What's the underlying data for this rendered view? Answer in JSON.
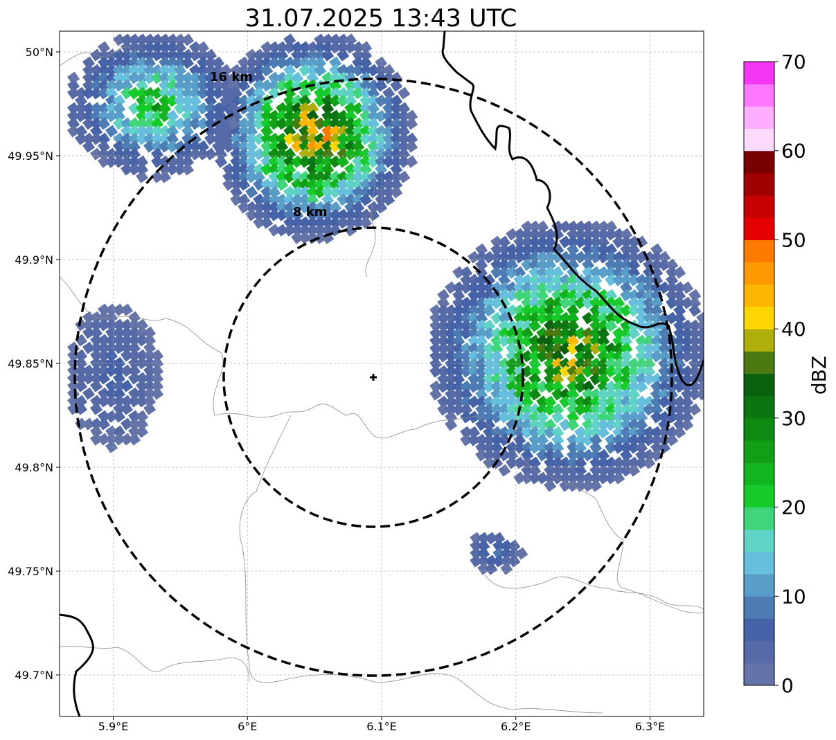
{
  "title": "31.07.2025 13:43 UTC",
  "map": {
    "x_ticks": [
      "5.9°E",
      "6°E",
      "6.1°E",
      "6.2°E",
      "6.3°E"
    ],
    "y_ticks": [
      "50°N",
      "49.95°N",
      "49.9°N",
      "49.85°N",
      "49.8°N",
      "49.75°N",
      "49.7°N"
    ],
    "rings": [
      {
        "label": "8 km",
        "radius_km": 8
      },
      {
        "label": "16 km",
        "radius_km": 16
      }
    ],
    "radar_site_marker": "plus-icon"
  },
  "colorbar": {
    "label": "dBZ",
    "ticks": [
      "0",
      "10",
      "20",
      "30",
      "40",
      "50",
      "60",
      "70"
    ],
    "min": 0,
    "max": 70,
    "colors": [
      "#6474a8",
      "#556aa6",
      "#4563a6",
      "#4d7bb3",
      "#599ec9",
      "#66c0dd",
      "#5fd4c4",
      "#3fd67a",
      "#16cc2a",
      "#13b51f",
      "#119f16",
      "#0e8a13",
      "#0b7512",
      "#09600d",
      "#4b7a12",
      "#afaf0c",
      "#ffd700",
      "#ffb600",
      "#ff9a00",
      "#ff7b00",
      "#e50000",
      "#c80000",
      "#a00000",
      "#7a0000",
      "#ffd9ff",
      "#ffadff",
      "#ff78ff",
      "#f536f5"
    ]
  },
  "chart_data": {
    "type": "heatmap",
    "title": "31.07.2025 13:43 UTC",
    "xlabel": "",
    "ylabel": "",
    "xlim": [
      5.86,
      6.34
    ],
    "ylim": [
      49.68,
      50.01
    ],
    "x_ticks": [
      5.9,
      6.0,
      6.1,
      6.2,
      6.3
    ],
    "y_ticks": [
      49.7,
      49.75,
      49.8,
      49.85,
      49.9,
      49.95,
      50.0
    ],
    "grid": true,
    "radar_site": {
      "lon": 6.095,
      "lat": 49.843
    },
    "range_rings_km": [
      8,
      16
    ],
    "colorbar": {
      "label": "dBZ",
      "min": 0,
      "max": 70,
      "ticks": [
        0,
        10,
        20,
        30,
        40,
        50,
        60,
        70
      ]
    },
    "echo_cells": [
      {
        "name": "north",
        "lon_range": [
          5.97,
          6.12
        ],
        "lat_range": [
          49.91,
          50.01
        ],
        "peak_dbz": 52
      },
      {
        "name": "northwest",
        "lon_range": [
          5.86,
          5.99
        ],
        "lat_range": [
          49.94,
          50.01
        ],
        "peak_dbz": 28
      },
      {
        "name": "east",
        "lon_range": [
          6.13,
          6.34
        ],
        "lat_range": [
          49.79,
          49.92
        ],
        "peak_dbz": 45
      },
      {
        "name": "west",
        "lon_range": [
          5.86,
          5.93
        ],
        "lat_range": [
          49.81,
          49.88
        ],
        "peak_dbz": 5
      },
      {
        "name": "southeast",
        "lon_range": [
          6.16,
          6.2
        ],
        "lat_range": [
          49.75,
          49.77
        ],
        "peak_dbz": 10
      }
    ]
  }
}
